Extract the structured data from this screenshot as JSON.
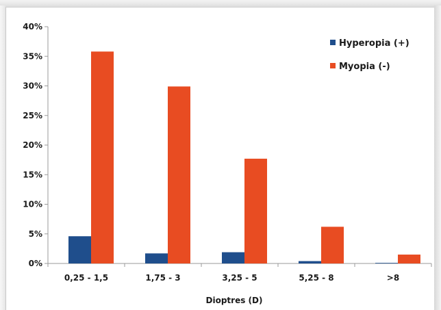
{
  "chart_data": {
    "type": "bar",
    "title": "",
    "xlabel": "Dioptres (D)",
    "ylabel": "",
    "categories": [
      "0,25 - 1,5",
      "1,75 - 3",
      "3,25 - 5",
      "5,25 - 8",
      ">8"
    ],
    "series": [
      {
        "name": "Hyperopia (+)",
        "color": "#1f4e8c",
        "values": [
          4.6,
          1.7,
          1.9,
          0.4,
          0.1
        ]
      },
      {
        "name": "Myopia (-)",
        "color": "#e84c22",
        "values": [
          35.8,
          29.9,
          17.7,
          6.2,
          1.5
        ]
      }
    ],
    "ylim": [
      0,
      40
    ],
    "yticks": [
      "0%",
      "5%",
      "10%",
      "15%",
      "20%",
      "25%",
      "30%",
      "35%",
      "40%"
    ],
    "ytick_values": [
      0,
      5,
      10,
      15,
      20,
      25,
      30,
      35,
      40
    ],
    "grid": false,
    "legend_position": "top-right"
  }
}
